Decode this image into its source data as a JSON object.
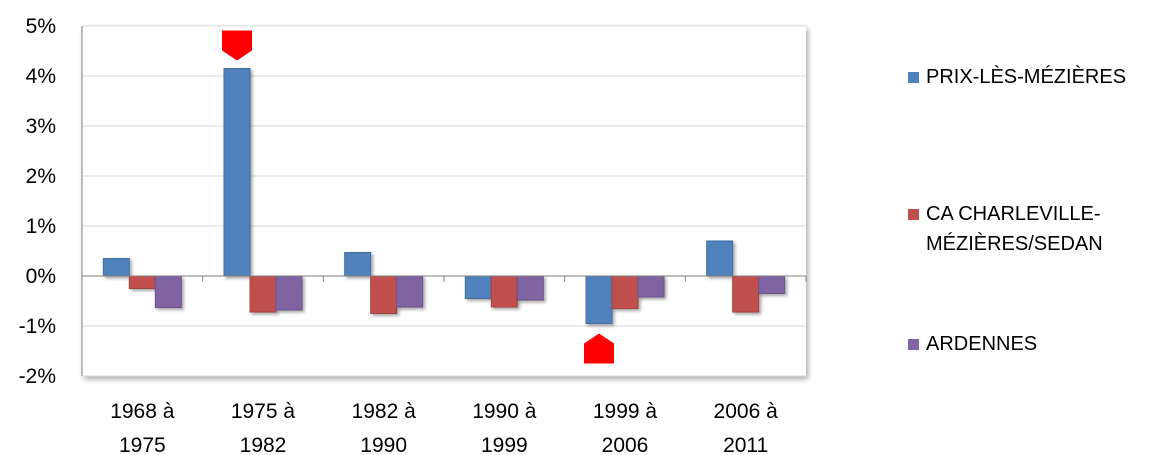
{
  "chart_data": {
    "type": "bar",
    "categories": [
      [
        "1968 à",
        "1975"
      ],
      [
        "1975 à",
        "1982"
      ],
      [
        "1982 à",
        "1990"
      ],
      [
        "1990 à",
        "1999"
      ],
      [
        "1999 à",
        "2006"
      ],
      [
        "2006 à",
        "2011"
      ]
    ],
    "series": [
      {
        "name": "PRIX-LÈS-MÉZIÈRES",
        "color": "#4F81BD",
        "values": [
          0.35,
          4.15,
          0.47,
          -0.45,
          -0.95,
          0.7
        ]
      },
      {
        "name": "CA CHARLEVILLE-MÉZIÈRES/SEDAN",
        "legend_lines": [
          "CA CHARLEVILLE-",
          "MÉZIÈRES/SEDAN"
        ],
        "color": "#C0504D",
        "values": [
          -0.25,
          -0.72,
          -0.75,
          -0.62,
          -0.65,
          -0.72
        ]
      },
      {
        "name": "ARDENNES",
        "color": "#8064A2",
        "values": [
          -0.63,
          -0.68,
          -0.62,
          -0.48,
          -0.42,
          -0.35
        ]
      }
    ],
    "ylim": [
      -2,
      5
    ],
    "yticks": [
      {
        "value": 5,
        "label": "5%"
      },
      {
        "value": 4,
        "label": "4%"
      },
      {
        "value": 3,
        "label": "3%"
      },
      {
        "value": 2,
        "label": "2%"
      },
      {
        "value": 1,
        "label": "1%"
      },
      {
        "value": 0,
        "label": "0%"
      },
      {
        "value": -1,
        "label": "-1%"
      },
      {
        "value": -2,
        "label": "-2%"
      }
    ],
    "grid": true,
    "legend_position": "right",
    "markers": [
      {
        "category_index": 1,
        "series_index": 0,
        "shape": "pentagon-down",
        "color": "#FF0000"
      },
      {
        "category_index": 4,
        "series_index": 0,
        "shape": "pentagon-up",
        "color": "#FF0000"
      }
    ]
  }
}
